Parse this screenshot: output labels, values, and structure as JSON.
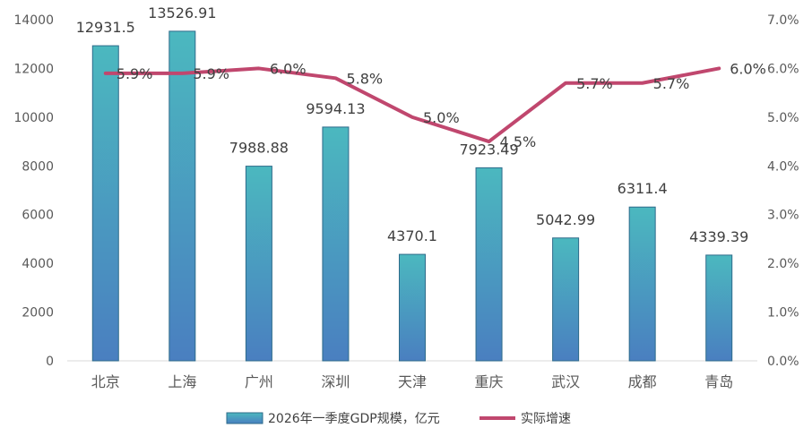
{
  "chart_data": {
    "type": "bar",
    "categories": [
      "北京",
      "上海",
      "广州",
      "深圳",
      "天津",
      "重庆",
      "武汉",
      "成都",
      "青岛"
    ],
    "series": [
      {
        "name": "2026年一季度GDP规模，亿元",
        "type": "bar",
        "axis": "left",
        "values": [
          12931.5,
          13526.91,
          7988.88,
          9594.13,
          4370.1,
          7923.49,
          5042.99,
          6311.4,
          4339.39
        ],
        "labels": [
          "12931.5",
          "13526.91",
          "7988.88",
          "9594.13",
          "4370.1",
          "7923.49",
          "5042.99",
          "6311.4",
          "4339.39"
        ],
        "color_top": "#4bb8bf",
        "color_bottom": "#4a7fc0",
        "border": "#2e6b8a"
      },
      {
        "name": "实际增速",
        "type": "line",
        "axis": "right",
        "values": [
          5.9,
          5.9,
          6.0,
          5.8,
          5.0,
          4.5,
          5.7,
          5.7,
          6.0
        ],
        "labels": [
          "5.9%",
          "5.9%",
          "6.0%",
          "5.8%",
          "5.0%",
          "4.5%",
          "5.7%",
          "5.7%",
          "6.0%"
        ],
        "color": "#c0476e"
      }
    ],
    "y_left": {
      "min": 0,
      "max": 14000,
      "ticks": [
        "0",
        "2000",
        "4000",
        "6000",
        "8000",
        "10000",
        "12000",
        "14000"
      ]
    },
    "y_right": {
      "min": 0,
      "max": 7.0,
      "ticks": [
        "0.0%",
        "1.0%",
        "2.0%",
        "3.0%",
        "4.0%",
        "5.0%",
        "6.0%",
        "7.0%"
      ]
    },
    "grid": false,
    "legend_position": "bottom"
  }
}
